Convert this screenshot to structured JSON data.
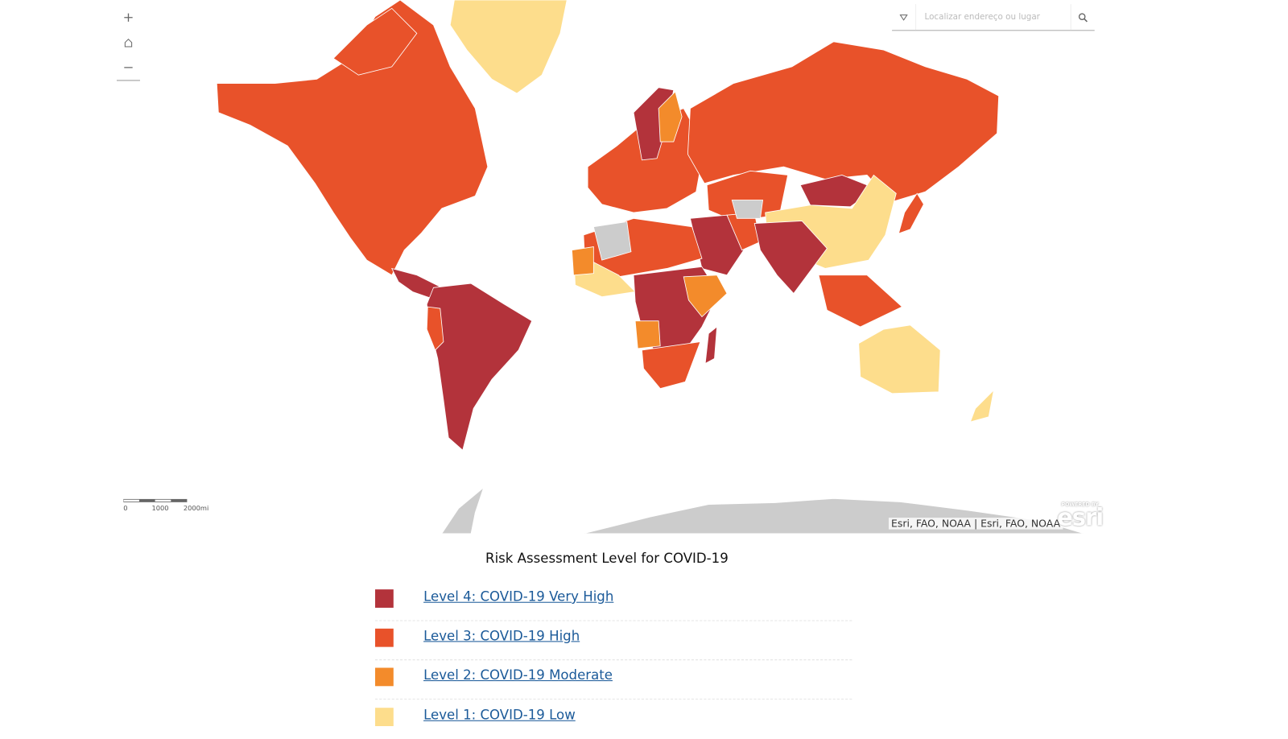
{
  "search": {
    "placeholder": "Localizar endereço ou lugar"
  },
  "scale_bar": {
    "labels": [
      "0",
      "1000",
      "2000mi"
    ]
  },
  "attribution": "Esri, FAO, NOAA | Esri, FAO, NOAA",
  "logo": {
    "caption": "POWERED BY",
    "name": "esri"
  },
  "map": {
    "no_data_color": "#cccccc"
  },
  "legend": {
    "title": "Risk Assessment Level for COVID-19",
    "items": [
      {
        "label": "Level 4: COVID-19 Very High",
        "color": "#b3333b"
      },
      {
        "label": "Level 3: COVID-19 High",
        "color": "#e8522a"
      },
      {
        "label": "Level 2: COVID-19 Moderate",
        "color": "#f38b2b"
      },
      {
        "label": "Level 1: COVID-19 Low",
        "color": "#fddd8c"
      }
    ]
  }
}
